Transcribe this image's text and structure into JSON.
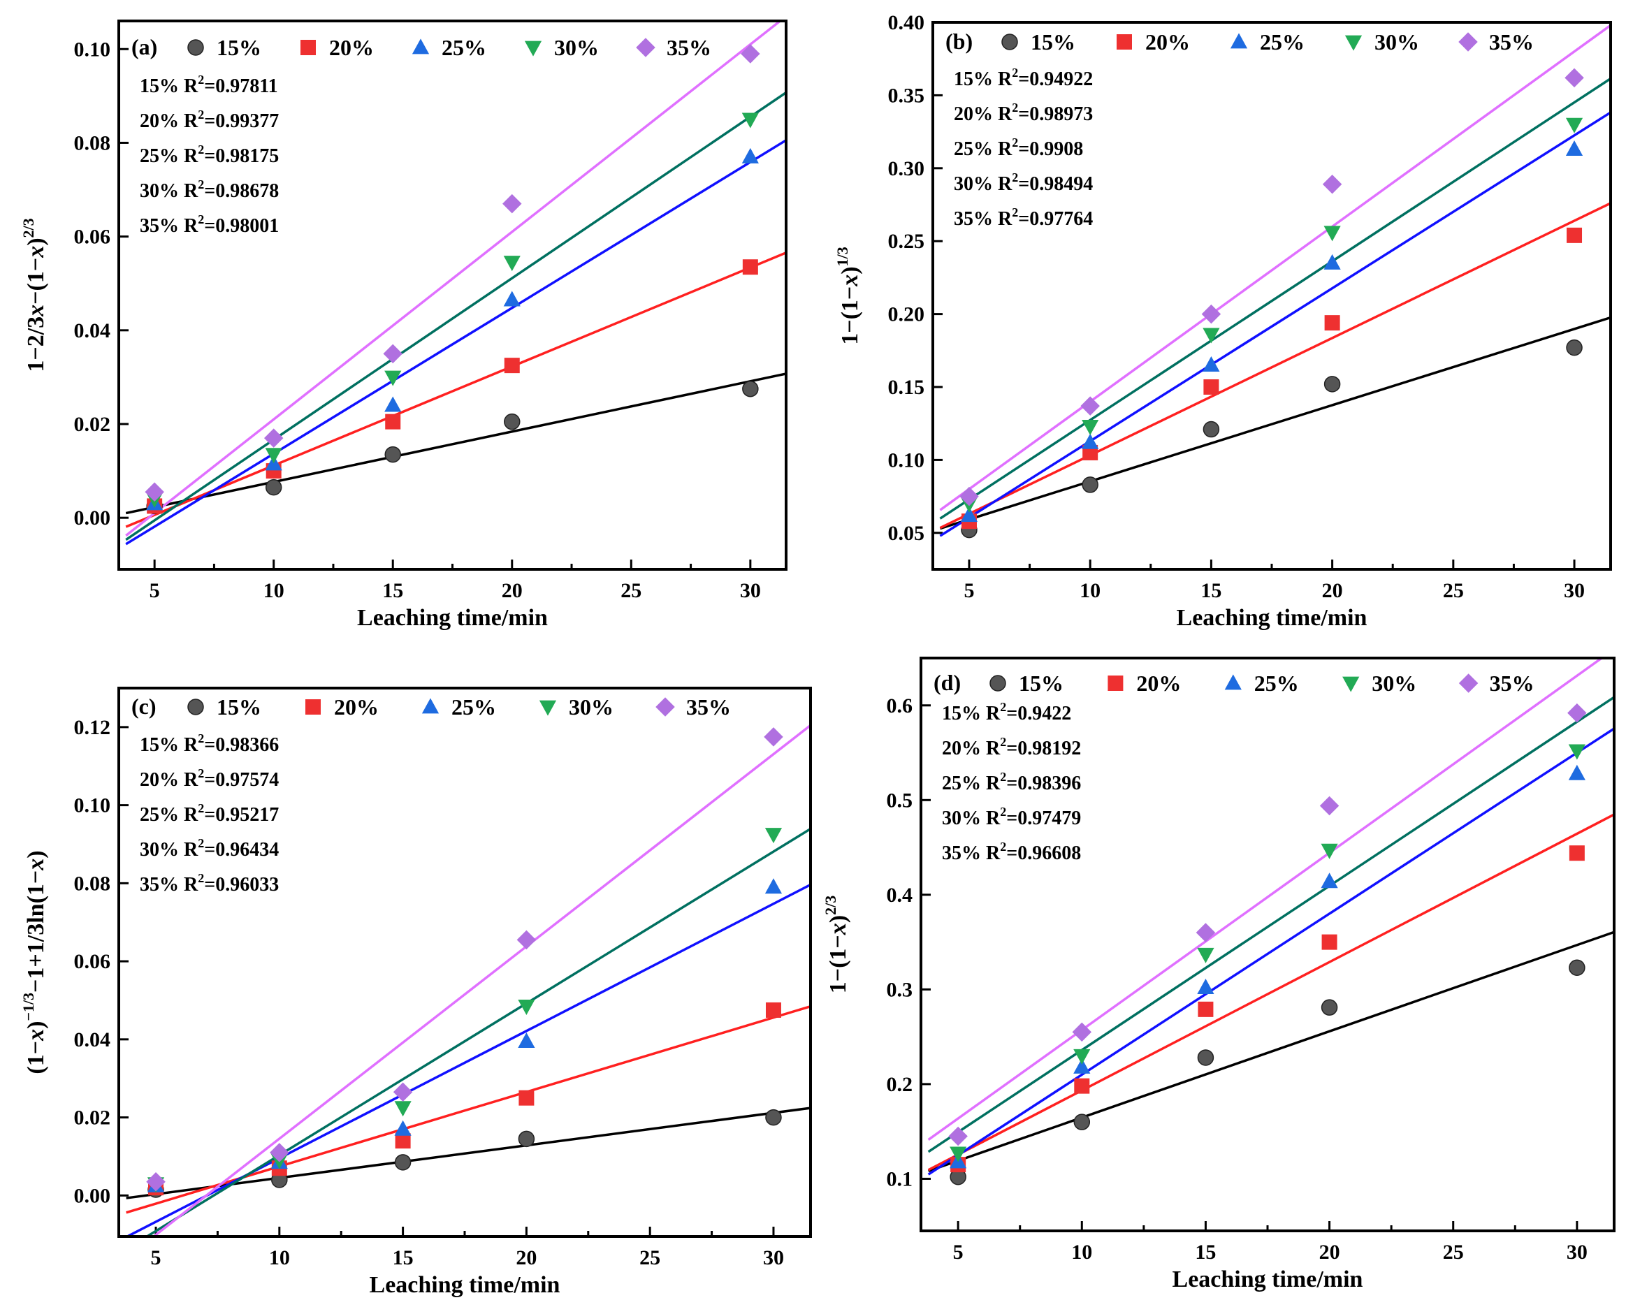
{
  "figure": {
    "xlabel": "Leaching time/min",
    "legend_labels": [
      "15%",
      "20%",
      "25%",
      "30%",
      "35%"
    ],
    "colors": {
      "s15": "#000000",
      "s20": "#ff2020",
      "s25": "#1010ff",
      "s30": "#007060",
      "s35": "#e070ff"
    },
    "marker_colors": {
      "s15": "#555555",
      "s20": "#ee3030",
      "s25": "#1e6be0",
      "s30": "#22aa55",
      "s35": "#b070e0"
    }
  },
  "chart_data": [
    {
      "type": "scatter",
      "panel": "(a)",
      "ylabel_parts": [
        "1−2/3",
        "x",
        "−(1−",
        "x",
        ")",
        "2/3"
      ],
      "xlabel": "Leaching time/min",
      "xlim": [
        3.5,
        31.5
      ],
      "ylim": [
        -0.011,
        0.106
      ],
      "xticks": [
        5,
        10,
        15,
        20,
        25,
        30
      ],
      "yticks": [
        0.0,
        0.02,
        0.04,
        0.06,
        0.08,
        0.1
      ],
      "ytick_labels": [
        "0.00",
        "0.02",
        "0.04",
        "0.06",
        "0.08",
        "0.10"
      ],
      "x": [
        5,
        10,
        15,
        20,
        30
      ],
      "series": [
        {
          "name": "15%",
          "values": [
            0.0025,
            0.0065,
            0.0135,
            0.0205,
            0.0275
          ],
          "fit": [
            0.0012,
            0.0302
          ],
          "r2_label": "15% R",
          "r2_value": "=0.97811"
        },
        {
          "name": "20%",
          "values": [
            0.0025,
            0.01,
            0.0205,
            0.0325,
            0.0535
          ],
          "fit": [
            -0.0015,
            0.0555
          ],
          "r2_label": "20% R",
          "r2_value": "=0.99377"
        },
        {
          "name": "25%",
          "values": [
            0.003,
            0.0115,
            0.024,
            0.0465,
            0.077
          ],
          "fit": [
            -0.005,
            0.079
          ],
          "r2_label": "25% R",
          "r2_value": "=0.98175"
        },
        {
          "name": "30%",
          "values": [
            0.004,
            0.0135,
            0.03,
            0.0545,
            0.085
          ],
          "fit": [
            -0.004,
            0.089
          ],
          "r2_label": "30% R",
          "r2_value": "=0.98678"
        },
        {
          "name": "35%",
          "values": [
            0.0055,
            0.017,
            0.035,
            0.067,
            0.099
          ],
          "fit": [
            -0.003,
            0.105
          ],
          "r2_label": "35% R",
          "r2_value": "=0.98001"
        }
      ]
    },
    {
      "type": "scatter",
      "panel": "(b)",
      "ylabel_parts": [
        "1−(1−",
        "x",
        ")",
        "1/3"
      ],
      "xlabel": "Leaching time/min",
      "xlim": [
        3.5,
        31.5
      ],
      "ylim": [
        0.025,
        0.4
      ],
      "xticks": [
        5,
        10,
        15,
        20,
        25,
        30
      ],
      "yticks": [
        0.05,
        0.1,
        0.15,
        0.2,
        0.25,
        0.3,
        0.35,
        0.4
      ],
      "ytick_labels": [
        "0.05",
        "0.10",
        "0.15",
        "0.20",
        "0.25",
        "0.30",
        "0.35",
        "0.40"
      ],
      "x": [
        5,
        10,
        15,
        20,
        30
      ],
      "series": [
        {
          "name": "15%",
          "values": [
            0.052,
            0.083,
            0.121,
            0.152,
            0.177
          ],
          "fit": [
            0.054,
            0.195
          ],
          "r2_label": "15% R",
          "r2_value": "=0.94922"
        },
        {
          "name": "20%",
          "values": [
            0.058,
            0.105,
            0.15,
            0.194,
            0.254
          ],
          "fit": [
            0.055,
            0.272
          ],
          "r2_label": "20% R",
          "r2_value": "=0.98973"
        },
        {
          "name": "25%",
          "values": [
            0.062,
            0.112,
            0.165,
            0.235,
            0.313
          ],
          "fit": [
            0.05,
            0.333
          ],
          "r2_label": "25% R",
          "r2_value": "=0.9908"
        },
        {
          "name": "30%",
          "values": [
            0.07,
            0.123,
            0.186,
            0.256,
            0.33
          ],
          "fit": [
            0.062,
            0.356
          ],
          "r2_label": "30% R",
          "r2_value": "=0.98494"
        },
        {
          "name": "35%",
          "values": [
            0.075,
            0.137,
            0.2,
            0.289,
            0.362
          ],
          "fit": [
            0.068,
            0.392
          ],
          "r2_label": "35% R",
          "r2_value": "=0.97764"
        }
      ]
    },
    {
      "type": "scatter",
      "panel": "(c)",
      "ylabel_parts": [
        "(1−",
        "x",
        ")",
        "−1/3",
        "−1+1/3ln(1−",
        "x",
        ")"
      ],
      "xlabel": "Leaching time/min",
      "xlim": [
        3.5,
        31.5
      ],
      "ylim": [
        -0.0105,
        0.13
      ],
      "xticks": [
        5,
        10,
        15,
        20,
        25,
        30
      ],
      "yticks": [
        0.0,
        0.02,
        0.04,
        0.06,
        0.08,
        0.1,
        0.12
      ],
      "ytick_labels": [
        "0.00",
        "0.02",
        "0.04",
        "0.06",
        "0.08",
        "0.10",
        "0.12"
      ],
      "x": [
        5,
        10,
        15,
        20,
        30
      ],
      "series": [
        {
          "name": "15%",
          "values": [
            0.0015,
            0.004,
            0.0085,
            0.0145,
            0.02
          ],
          "fit": [
            -0.0005,
            0.022
          ],
          "r2_label": "15% R",
          "r2_value": "=0.98366"
        },
        {
          "name": "20%",
          "values": [
            0.002,
            0.007,
            0.014,
            0.025,
            0.0475
          ],
          "fit": [
            -0.004,
            0.0475
          ],
          "r2_label": "20% R",
          "r2_value": "=0.97574"
        },
        {
          "name": "25%",
          "values": [
            0.0025,
            0.0085,
            0.017,
            0.0395,
            0.079
          ],
          "fit": [
            -0.01,
            0.078
          ],
          "r2_label": "25% R",
          "r2_value": "=0.95217"
        },
        {
          "name": "30%",
          "values": [
            0.003,
            0.009,
            0.0225,
            0.0485,
            0.0925
          ],
          "fit": [
            -0.013,
            0.092
          ],
          "r2_label": "30% R",
          "r2_value": "=0.96434"
        },
        {
          "name": "35%",
          "values": [
            0.0035,
            0.011,
            0.0265,
            0.0655,
            0.1175
          ],
          "fit": [
            -0.015,
            0.118
          ],
          "r2_label": "35% R",
          "r2_value": "=0.96033"
        }
      ]
    },
    {
      "type": "scatter",
      "panel": "(d)",
      "ylabel_parts": [
        "1−(1−",
        "x",
        ")",
        "2/3"
      ],
      "xlabel": "Leaching time/min",
      "xlim": [
        3.5,
        31.5
      ],
      "ylim": [
        0.045,
        0.65
      ],
      "xticks": [
        5,
        10,
        15,
        20,
        25,
        30
      ],
      "yticks": [
        0.1,
        0.2,
        0.3,
        0.4,
        0.5,
        0.6
      ],
      "ytick_labels": [
        "0.1",
        "0.2",
        "0.3",
        "0.4",
        "0.5",
        "0.6"
      ],
      "x": [
        5,
        10,
        15,
        20,
        30
      ],
      "series": [
        {
          "name": "15%",
          "values": [
            0.102,
            0.16,
            0.228,
            0.281,
            0.323
          ],
          "fit": [
            0.11,
            0.356
          ],
          "r2_label": "15% R",
          "r2_value": "=0.9422"
        },
        {
          "name": "20%",
          "values": [
            0.115,
            0.198,
            0.279,
            0.35,
            0.444
          ],
          "fit": [
            0.112,
            0.478
          ],
          "r2_label": "20% R",
          "r2_value": "=0.98192"
        },
        {
          "name": "25%",
          "values": [
            0.118,
            0.218,
            0.302,
            0.414,
            0.528
          ],
          "fit": [
            0.108,
            0.567
          ],
          "r2_label": "25% R",
          "r2_value": "=0.98396"
        },
        {
          "name": "30%",
          "values": [
            0.127,
            0.23,
            0.337,
            0.447,
            0.552
          ],
          "fit": [
            0.132,
            0.6
          ],
          "r2_label": "30% R",
          "r2_value": "=0.97479"
        },
        {
          "name": "35%",
          "values": [
            0.145,
            0.255,
            0.36,
            0.494,
            0.592
          ],
          "fit": [
            0.145,
            0.65
          ],
          "r2_label": "35% R",
          "r2_value": "=0.96608"
        }
      ]
    }
  ]
}
